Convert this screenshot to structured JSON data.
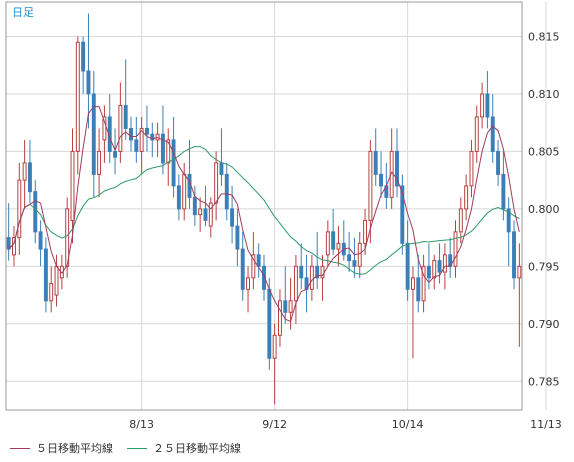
{
  "period_label": "日足",
  "legend": {
    "ma5_label": "５日移動平均線",
    "ma25_label": "２５日移動平均線"
  },
  "colors": {
    "up": "#ffffff",
    "up_border": "#b84040",
    "down": "#3c7fb8",
    "wick": "#b84040",
    "ma5": "#a03c5a",
    "ma25": "#2e9a6a",
    "grid": "#d8d8d8",
    "axis": "#999999",
    "frame": "#999999"
  },
  "chart_data": {
    "type": "candlestick",
    "y_ticks": [
      "0.815",
      "0.810",
      "0.805",
      "0.800",
      "0.795",
      "0.790",
      "0.785"
    ],
    "ylim": [
      0.7825,
      0.818
    ],
    "x_ticks": [
      {
        "label": "8/13",
        "index": 25
      },
      {
        "label": "9/12",
        "index": 50
      },
      {
        "label": "10/14",
        "index": 75
      },
      {
        "label": "11/13",
        "index": 101
      }
    ],
    "candles": [
      [
        0.7975,
        0.8005,
        0.7955,
        0.7965
      ],
      [
        0.796,
        0.7985,
        0.795,
        0.7975
      ],
      [
        0.7975,
        0.804,
        0.796,
        0.8025
      ],
      [
        0.8025,
        0.806,
        0.8,
        0.804
      ],
      [
        0.804,
        0.806,
        0.8005,
        0.8015
      ],
      [
        0.8015,
        0.8025,
        0.797,
        0.798
      ],
      [
        0.798,
        0.799,
        0.795,
        0.7965
      ],
      [
        0.7965,
        0.7975,
        0.791,
        0.792
      ],
      [
        0.792,
        0.795,
        0.791,
        0.7935
      ],
      [
        0.7925,
        0.796,
        0.7915,
        0.795
      ],
      [
        0.794,
        0.796,
        0.793,
        0.795
      ],
      [
        0.795,
        0.801,
        0.794,
        0.8
      ],
      [
        0.799,
        0.807,
        0.797,
        0.805
      ],
      [
        0.805,
        0.815,
        0.803,
        0.8145
      ],
      [
        0.8145,
        0.815,
        0.81,
        0.812
      ],
      [
        0.812,
        0.817,
        0.807,
        0.81
      ],
      [
        0.81,
        0.812,
        0.801,
        0.803
      ],
      [
        0.803,
        0.807,
        0.801,
        0.805
      ],
      [
        0.806,
        0.809,
        0.804,
        0.808
      ],
      [
        0.808,
        0.81,
        0.804,
        0.805
      ],
      [
        0.805,
        0.807,
        0.803,
        0.8045
      ],
      [
        0.805,
        0.811,
        0.804,
        0.809
      ],
      [
        0.809,
        0.813,
        0.806,
        0.807
      ],
      [
        0.807,
        0.808,
        0.805,
        0.806
      ],
      [
        0.806,
        0.808,
        0.804,
        0.805
      ],
      [
        0.805,
        0.808,
        0.803,
        0.807
      ],
      [
        0.807,
        0.809,
        0.805,
        0.8065
      ],
      [
        0.8065,
        0.8075,
        0.8045,
        0.806
      ],
      [
        0.806,
        0.8075,
        0.8045,
        0.8065
      ],
      [
        0.8065,
        0.809,
        0.803,
        0.804
      ],
      [
        0.804,
        0.807,
        0.802,
        0.806
      ],
      [
        0.806,
        0.808,
        0.801,
        0.802
      ],
      [
        0.802,
        0.803,
        0.799,
        0.8
      ],
      [
        0.8,
        0.804,
        0.799,
        0.803
      ],
      [
        0.803,
        0.806,
        0.8,
        0.801
      ],
      [
        0.801,
        0.802,
        0.7985,
        0.7995
      ],
      [
        0.7995,
        0.801,
        0.798,
        0.8
      ],
      [
        0.8,
        0.802,
        0.7985,
        0.799
      ],
      [
        0.7985,
        0.801,
        0.7975,
        0.8005
      ],
      [
        0.8005,
        0.805,
        0.799,
        0.804
      ],
      [
        0.804,
        0.807,
        0.802,
        0.803
      ],
      [
        0.803,
        0.804,
        0.799,
        0.8
      ],
      [
        0.8,
        0.802,
        0.797,
        0.7985
      ],
      [
        0.7985,
        0.8,
        0.795,
        0.7965
      ],
      [
        0.7965,
        0.798,
        0.792,
        0.793
      ],
      [
        0.793,
        0.795,
        0.791,
        0.794
      ],
      [
        0.794,
        0.798,
        0.793,
        0.796
      ],
      [
        0.796,
        0.797,
        0.794,
        0.795
      ],
      [
        0.795,
        0.796,
        0.792,
        0.793
      ],
      [
        0.793,
        0.794,
        0.786,
        0.787
      ],
      [
        0.787,
        0.79,
        0.783,
        0.789
      ],
      [
        0.789,
        0.793,
        0.788,
        0.792
      ],
      [
        0.792,
        0.795,
        0.79,
        0.791
      ],
      [
        0.791,
        0.794,
        0.7895,
        0.792
      ],
      [
        0.792,
        0.796,
        0.79,
        0.795
      ],
      [
        0.795,
        0.797,
        0.793,
        0.794
      ],
      [
        0.794,
        0.796,
        0.791,
        0.793
      ],
      [
        0.793,
        0.796,
        0.792,
        0.795
      ],
      [
        0.795,
        0.798,
        0.793,
        0.794
      ],
      [
        0.794,
        0.796,
        0.792,
        0.795
      ],
      [
        0.796,
        0.799,
        0.795,
        0.798
      ],
      [
        0.798,
        0.8,
        0.796,
        0.7965
      ],
      [
        0.7965,
        0.7985,
        0.795,
        0.797
      ],
      [
        0.797,
        0.799,
        0.7955,
        0.796
      ],
      [
        0.796,
        0.798,
        0.7945,
        0.7955
      ],
      [
        0.7955,
        0.7975,
        0.794,
        0.795
      ],
      [
        0.795,
        0.798,
        0.794,
        0.797
      ],
      [
        0.797,
        0.8,
        0.796,
        0.799
      ],
      [
        0.799,
        0.806,
        0.797,
        0.805
      ],
      [
        0.805,
        0.807,
        0.802,
        0.803
      ],
      [
        0.803,
        0.805,
        0.801,
        0.802
      ],
      [
        0.802,
        0.804,
        0.8,
        0.801
      ],
      [
        0.801,
        0.807,
        0.8,
        0.805
      ],
      [
        0.805,
        0.807,
        0.801,
        0.802
      ],
      [
        0.802,
        0.803,
        0.796,
        0.797
      ],
      [
        0.797,
        0.799,
        0.792,
        0.793
      ],
      [
        0.793,
        0.795,
        0.787,
        0.794
      ],
      [
        0.794,
        0.796,
        0.791,
        0.792
      ],
      [
        0.792,
        0.796,
        0.791,
        0.795
      ],
      [
        0.795,
        0.797,
        0.793,
        0.794
      ],
      [
        0.794,
        0.796,
        0.793,
        0.7955
      ],
      [
        0.7955,
        0.797,
        0.7935,
        0.7945
      ],
      [
        0.7945,
        0.797,
        0.793,
        0.796
      ],
      [
        0.796,
        0.7975,
        0.794,
        0.795
      ],
      [
        0.795,
        0.799,
        0.794,
        0.798
      ],
      [
        0.798,
        0.801,
        0.797,
        0.8
      ],
      [
        0.8,
        0.803,
        0.799,
        0.802
      ],
      [
        0.802,
        0.806,
        0.801,
        0.805
      ],
      [
        0.805,
        0.809,
        0.804,
        0.808
      ],
      [
        0.808,
        0.811,
        0.807,
        0.81
      ],
      [
        0.81,
        0.812,
        0.807,
        0.808
      ],
      [
        0.808,
        0.81,
        0.804,
        0.805
      ],
      [
        0.805,
        0.806,
        0.802,
        0.803
      ],
      [
        0.803,
        0.805,
        0.799,
        0.8
      ],
      [
        0.8,
        0.801,
        0.795,
        0.798
      ],
      [
        0.798,
        0.799,
        0.793,
        0.794
      ],
      [
        0.794,
        0.797,
        0.788,
        0.795
      ]
    ]
  }
}
